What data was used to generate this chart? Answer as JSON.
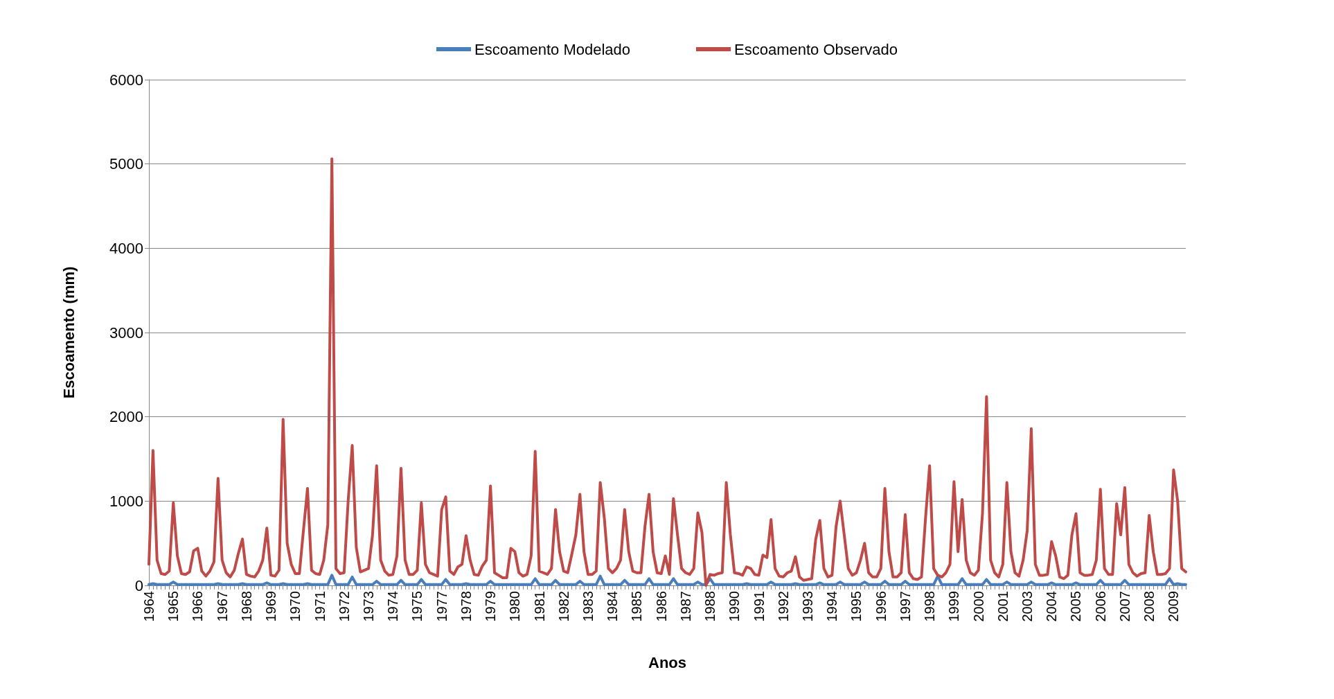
{
  "chart_data": {
    "type": "line",
    "xlabel": "Anos",
    "ylabel": "Escoamento (mm)",
    "ylim": [
      0,
      6000
    ],
    "yticks": [
      0,
      1000,
      2000,
      3000,
      4000,
      5000,
      6000
    ],
    "grid": "y",
    "legend": "top",
    "marker": "none",
    "line_style": "solid",
    "categories": [
      "1964",
      null,
      null,
      null,
      null,
      null,
      "1965",
      null,
      null,
      null,
      null,
      null,
      "1966",
      null,
      null,
      null,
      null,
      null,
      "1967",
      null,
      null,
      null,
      null,
      null,
      "1968",
      null,
      null,
      null,
      null,
      null,
      "1969",
      null,
      null,
      null,
      null,
      null,
      "1970",
      null,
      null,
      null,
      null,
      null,
      "1971",
      null,
      null,
      null,
      null,
      null,
      "1972",
      null,
      null,
      null,
      null,
      null,
      "1973",
      null,
      null,
      null,
      null,
      null,
      "1974",
      null,
      null,
      null,
      null,
      null,
      "1975",
      null,
      null,
      null,
      null,
      null,
      "1977",
      null,
      null,
      null,
      null,
      null,
      "1978",
      null,
      null,
      null,
      null,
      null,
      "1979",
      null,
      null,
      null,
      null,
      null,
      "1980",
      null,
      null,
      null,
      null,
      null,
      "1981",
      null,
      null,
      null,
      null,
      null,
      "1982",
      null,
      null,
      null,
      null,
      null,
      "1983",
      null,
      null,
      null,
      null,
      null,
      "1984",
      null,
      null,
      null,
      null,
      null,
      "1985",
      null,
      null,
      null,
      null,
      null,
      "1986",
      null,
      null,
      null,
      null,
      null,
      "1987",
      null,
      null,
      null,
      null,
      null,
      "1988",
      null,
      null,
      null,
      null,
      null,
      "1990",
      null,
      null,
      null,
      null,
      null,
      "1991",
      null,
      null,
      null,
      null,
      null,
      "1992",
      null,
      null,
      null,
      null,
      null,
      "1993",
      null,
      null,
      null,
      null,
      null,
      "1994",
      null,
      null,
      null,
      null,
      null,
      "1995",
      null,
      null,
      null,
      null,
      null,
      "1996",
      null,
      null,
      null,
      null,
      null,
      "1997",
      null,
      null,
      null,
      null,
      null,
      "1998",
      null,
      null,
      null,
      null,
      null,
      "1999",
      null,
      null,
      null,
      null,
      null,
      "2000",
      null,
      null,
      null,
      null,
      null,
      "2001",
      null,
      null,
      null,
      null,
      null,
      "2003",
      null,
      null,
      null,
      null,
      null,
      "2004",
      null,
      null,
      null,
      null,
      null,
      "2005",
      null,
      null,
      null,
      null,
      null,
      "2006",
      null,
      null,
      null,
      null,
      null,
      "2007",
      null,
      null,
      null,
      null,
      null,
      "2008",
      null,
      null,
      null,
      null,
      null,
      "2009",
      null,
      null,
      null
    ],
    "series": [
      {
        "name": "Escoamento Modelado",
        "color": "#4a7ebb",
        "values": [
          10,
          20,
          10,
          10,
          10,
          10,
          40,
          10,
          10,
          10,
          10,
          10,
          10,
          10,
          10,
          10,
          10,
          20,
          10,
          10,
          10,
          10,
          10,
          20,
          10,
          10,
          10,
          10,
          10,
          30,
          10,
          10,
          10,
          20,
          10,
          10,
          10,
          10,
          10,
          20,
          10,
          10,
          10,
          10,
          10,
          120,
          10,
          10,
          10,
          10,
          100,
          10,
          10,
          10,
          10,
          10,
          50,
          10,
          10,
          10,
          10,
          10,
          60,
          10,
          10,
          10,
          10,
          70,
          10,
          10,
          10,
          10,
          10,
          70,
          10,
          10,
          10,
          10,
          20,
          10,
          10,
          10,
          10,
          10,
          50,
          10,
          10,
          10,
          10,
          10,
          10,
          10,
          10,
          10,
          10,
          80,
          10,
          10,
          10,
          10,
          60,
          10,
          10,
          10,
          10,
          10,
          50,
          10,
          10,
          10,
          10,
          110,
          10,
          10,
          10,
          10,
          10,
          60,
          10,
          10,
          10,
          10,
          10,
          80,
          10,
          10,
          10,
          10,
          10,
          80,
          10,
          10,
          10,
          10,
          10,
          40,
          10,
          10,
          80,
          10,
          10,
          10,
          10,
          10,
          10,
          10,
          10,
          20,
          10,
          10,
          10,
          10,
          10,
          40,
          10,
          10,
          10,
          10,
          10,
          20,
          10,
          10,
          10,
          10,
          10,
          30,
          10,
          10,
          10,
          10,
          40,
          10,
          10,
          10,
          10,
          10,
          40,
          10,
          10,
          10,
          10,
          50,
          10,
          10,
          10,
          10,
          50,
          10,
          10,
          10,
          10,
          10,
          10,
          10,
          110,
          10,
          10,
          10,
          10,
          10,
          80,
          10,
          10,
          10,
          10,
          10,
          70,
          10,
          10,
          10,
          10,
          40,
          10,
          10,
          10,
          10,
          10,
          40,
          10,
          10,
          10,
          10,
          30,
          10,
          10,
          10,
          10,
          10,
          30,
          10,
          10,
          10,
          10,
          10,
          60,
          10,
          10,
          10,
          10,
          10,
          60,
          10,
          10,
          10,
          10,
          10,
          10,
          10,
          10,
          10,
          10,
          80,
          10,
          20,
          10,
          10
        ]
      },
      {
        "name": "Escoamento Observado",
        "color": "#be4b48",
        "values": [
          250,
          1600,
          300,
          140,
          130,
          170,
          980,
          350,
          140,
          130,
          160,
          410,
          440,
          170,
          110,
          170,
          280,
          1270,
          300,
          150,
          100,
          180,
          380,
          550,
          130,
          110,
          100,
          170,
          300,
          680,
          120,
          110,
          180,
          1970,
          500,
          250,
          140,
          140,
          650,
          1150,
          180,
          140,
          130,
          300,
          720,
          5060,
          200,
          140,
          150,
          1000,
          1660,
          450,
          160,
          180,
          200,
          600,
          1420,
          300,
          170,
          120,
          130,
          350,
          1390,
          300,
          130,
          130,
          180,
          980,
          250,
          150,
          130,
          110,
          900,
          1050,
          170,
          130,
          220,
          250,
          590,
          300,
          130,
          120,
          230,
          300,
          1180,
          150,
          120,
          90,
          90,
          440,
          400,
          150,
          110,
          130,
          350,
          1590,
          170,
          150,
          130,
          200,
          900,
          400,
          170,
          150,
          370,
          600,
          1080,
          400,
          130,
          130,
          170,
          1220,
          800,
          200,
          150,
          200,
          300,
          900,
          400,
          170,
          150,
          150,
          700,
          1080,
          400,
          150,
          140,
          350,
          130,
          1030,
          600,
          200,
          150,
          130,
          200,
          860,
          630,
          0,
          130,
          120,
          140,
          150,
          1220,
          600,
          150,
          140,
          120,
          220,
          200,
          130,
          120,
          360,
          330,
          780,
          200,
          110,
          100,
          150,
          170,
          340,
          100,
          60,
          70,
          80,
          550,
          770,
          200,
          100,
          120,
          700,
          1000,
          600,
          200,
          120,
          150,
          300,
          500,
          150,
          100,
          100,
          200,
          1150,
          400,
          100,
          100,
          150,
          840,
          150,
          80,
          70,
          100,
          800,
          1420,
          200,
          120,
          100,
          150,
          250,
          1230,
          400,
          1020,
          300,
          150,
          120,
          180,
          850,
          2240,
          300,
          150,
          100,
          250,
          1220,
          400,
          150,
          110,
          300,
          650,
          1860,
          250,
          120,
          120,
          130,
          520,
          350,
          100,
          80,
          120,
          600,
          850,
          150,
          120,
          120,
          130,
          300,
          1140,
          200,
          130,
          130,
          970,
          600,
          1160,
          250,
          150,
          110,
          140,
          150,
          830,
          400,
          130,
          130,
          140,
          200,
          1370,
          1000,
          200,
          160
        ]
      }
    ]
  }
}
